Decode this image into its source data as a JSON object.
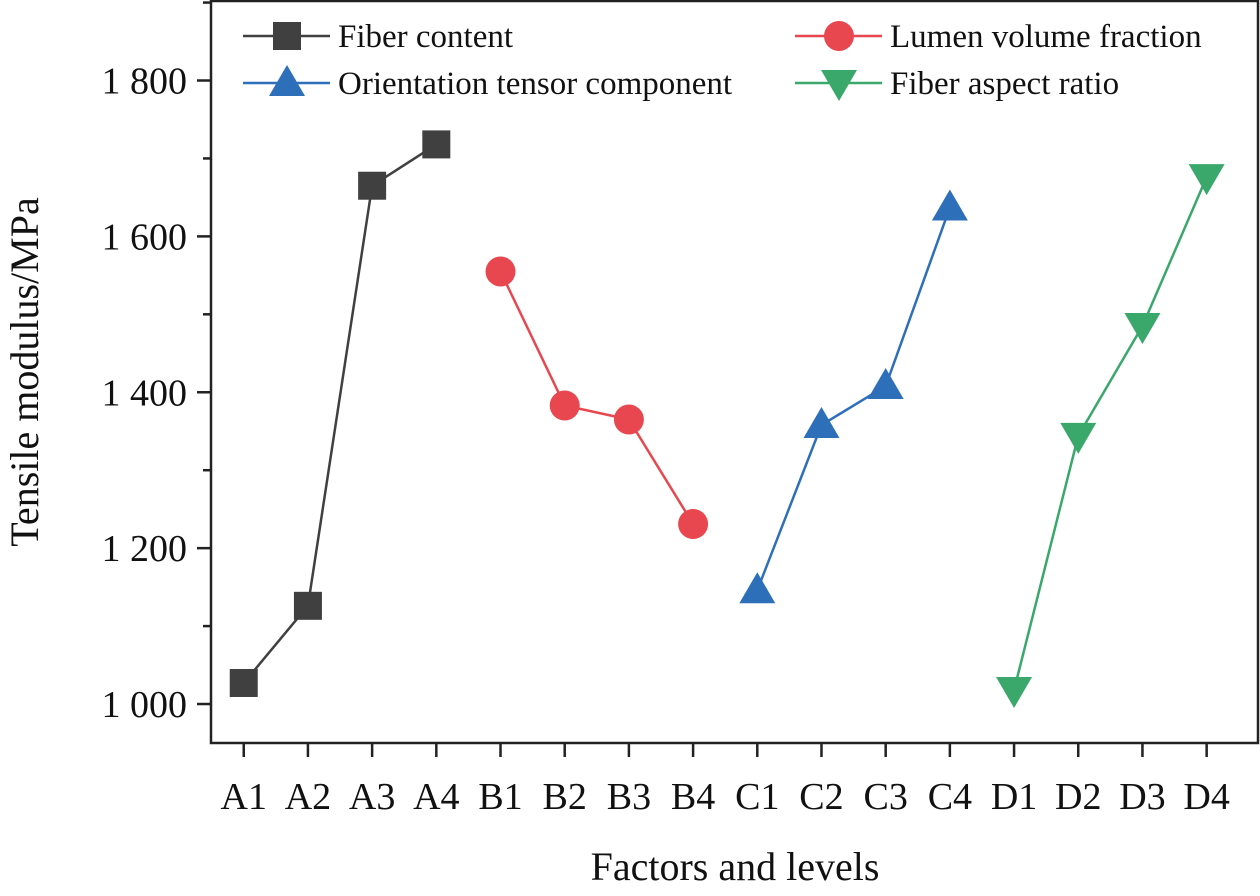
{
  "chart_data": {
    "type": "line",
    "title": "",
    "xlabel": "Factors and levels",
    "ylabel": "Tensile modulus/MPa",
    "categories": [
      "A1",
      "A2",
      "A3",
      "A4",
      "B1",
      "B2",
      "B3",
      "B4",
      "C1",
      "C2",
      "C3",
      "C4",
      "D1",
      "D2",
      "D3",
      "D4"
    ],
    "yticks": [
      1000,
      1200,
      1400,
      1600,
      1800
    ],
    "ytick_labels": [
      "1 000",
      "1 200",
      "1 400",
      "1 600",
      "1 800"
    ],
    "ylim": [
      950,
      1902
    ],
    "xlim": [
      0.49,
      16.8
    ],
    "grid": false,
    "legend_placement": "top",
    "series": [
      {
        "name": "Fiber content",
        "marker": "square",
        "color": "#404040",
        "x": [
          1,
          2,
          3,
          4
        ],
        "values": [
          1027,
          1126,
          1665,
          1718
        ]
      },
      {
        "name": "Lumen volume fraction",
        "marker": "circle",
        "color": "#e8474f",
        "x": [
          5,
          6,
          7,
          8
        ],
        "values": [
          1555,
          1383,
          1365,
          1231
        ]
      },
      {
        "name": "Orientation tensor component",
        "marker": "triangle-up",
        "color": "#2e6fba",
        "x": [
          9,
          10,
          11,
          12
        ],
        "values": [
          1146,
          1358,
          1408,
          1637
        ]
      },
      {
        "name": "Fiber aspect ratio",
        "marker": "triangle-down",
        "color": "#3aa86b",
        "x": [
          13,
          14,
          15,
          16
        ],
        "values": [
          1018,
          1344,
          1485,
          1676
        ]
      }
    ]
  }
}
